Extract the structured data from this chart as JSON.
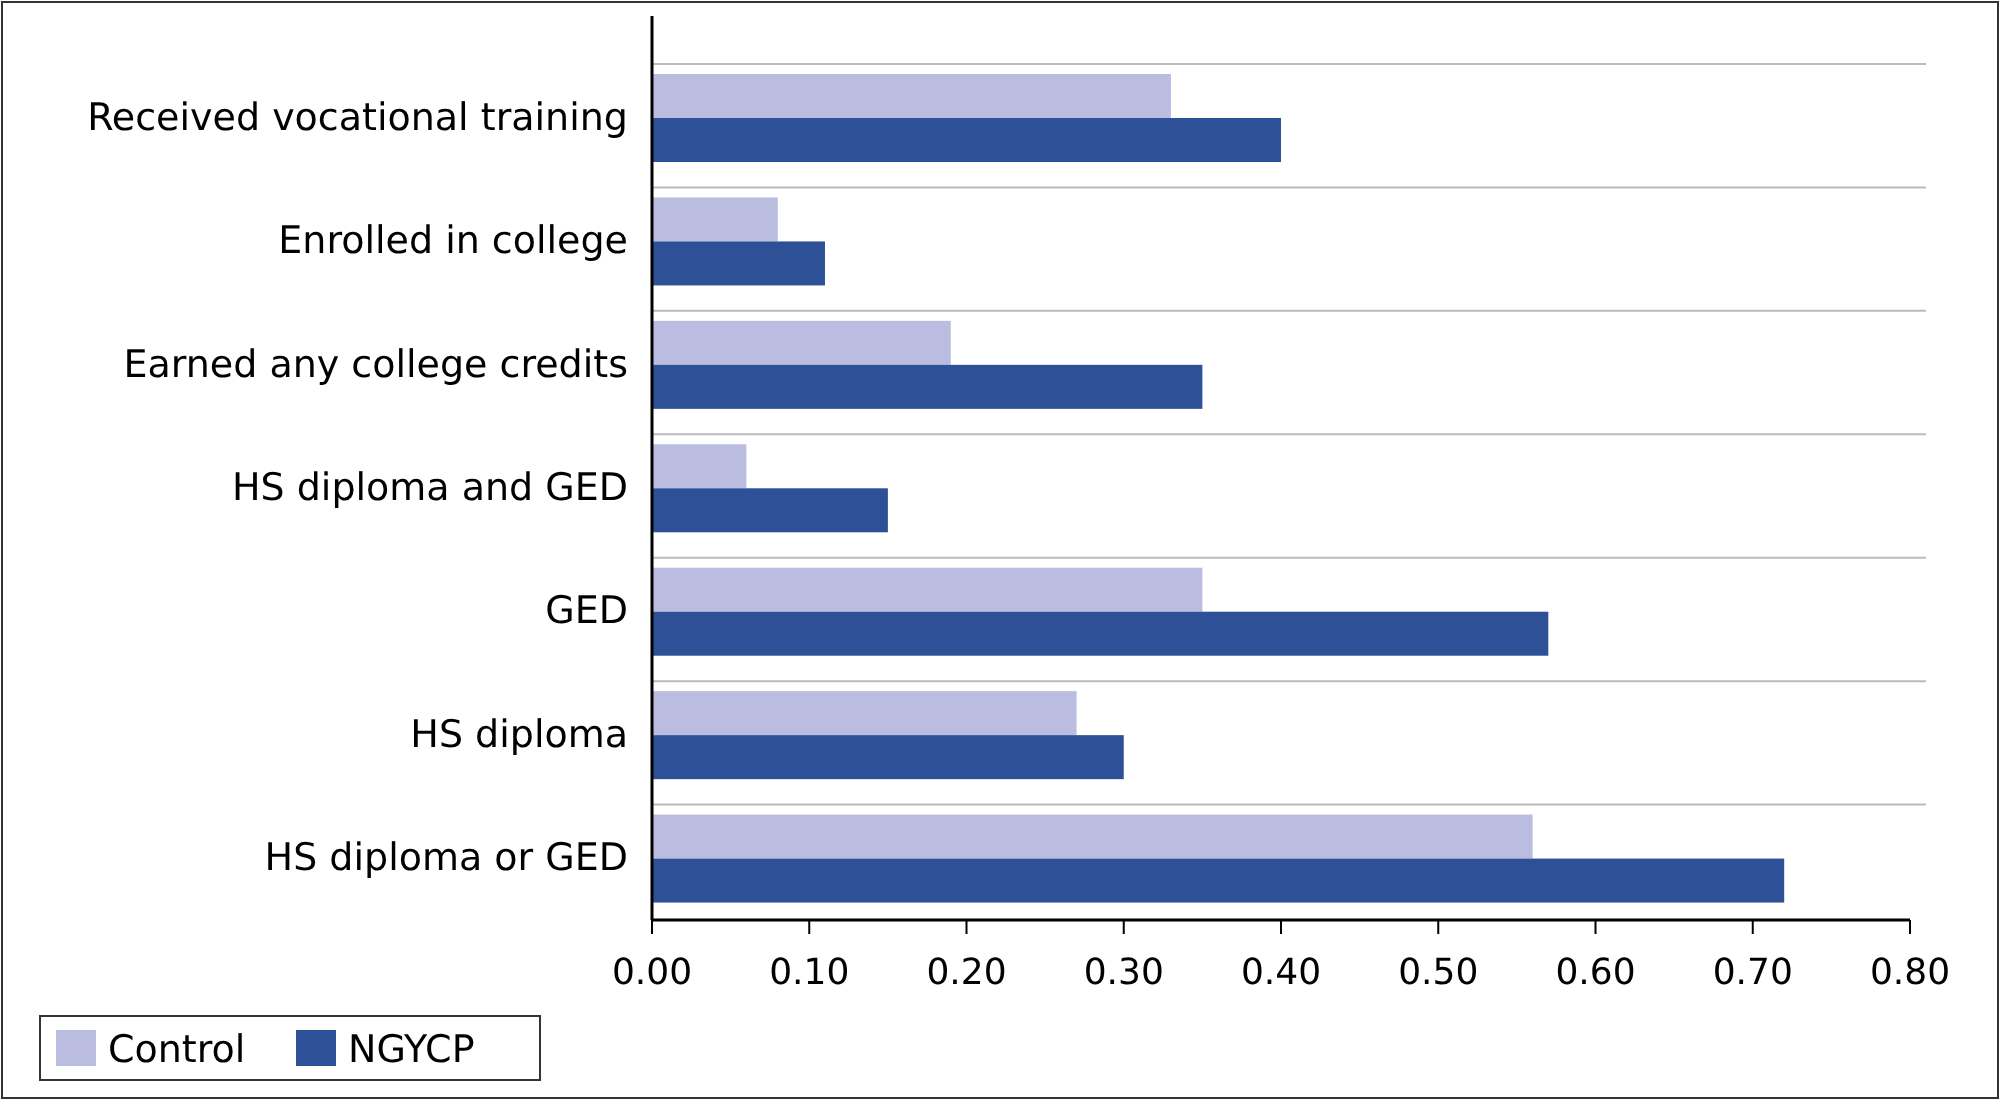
{
  "chart_data": {
    "type": "bar",
    "orientation": "horizontal",
    "categories": [
      "Received vocational training",
      "Enrolled in college",
      "Earned any college credits",
      "HS diploma and GED",
      "GED",
      "HS diploma",
      "HS diploma or GED"
    ],
    "series": [
      {
        "name": "Control",
        "color": "#babde0",
        "values": [
          0.33,
          0.08,
          0.19,
          0.06,
          0.35,
          0.27,
          0.56
        ]
      },
      {
        "name": "NGYCP",
        "color": "#2e5096",
        "values": [
          0.4,
          0.11,
          0.35,
          0.15,
          0.57,
          0.3,
          0.72
        ]
      }
    ],
    "xlim": [
      0,
      0.8
    ],
    "xticks": [
      {
        "value": 0,
        "label": "0.00"
      },
      {
        "value": 0.1,
        "label": "0.10"
      },
      {
        "value": 0.2,
        "label": "0.20"
      },
      {
        "value": 0.3,
        "label": "0.30"
      },
      {
        "value": 0.4,
        "label": "0.40"
      },
      {
        "value": 0.5,
        "label": "0.50"
      },
      {
        "value": 0.6,
        "label": "0.60"
      },
      {
        "value": 0.7,
        "label": "0.70"
      },
      {
        "value": 0.8,
        "label": "0.80"
      }
    ],
    "grid": "y",
    "legend": "bottom left"
  }
}
